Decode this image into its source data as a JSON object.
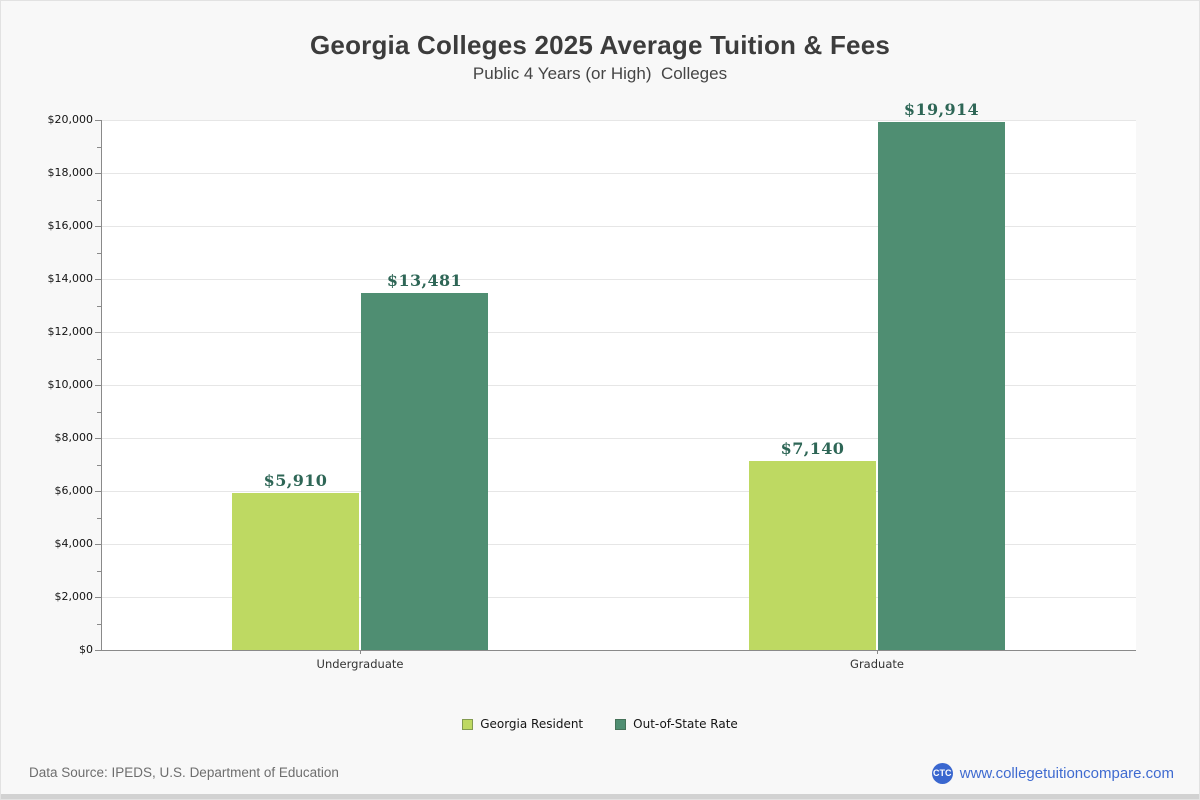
{
  "header": {
    "title": "Georgia Colleges 2025 Average Tuition & Fees",
    "subtitle": "Public 4 Years (or High)  Colleges"
  },
  "chart_data": {
    "type": "bar",
    "title": "Georgia Colleges 2025 Average Tuition & Fees",
    "subtitle": "Public 4 Years (or High)  Colleges",
    "categories": [
      "Undergraduate",
      "Graduate"
    ],
    "series": [
      {
        "name": "Georgia Resident",
        "color": "#bed962",
        "values": [
          5910,
          7140
        ],
        "labels": [
          "$5,910",
          "$7,140"
        ]
      },
      {
        "name": "Out-of-State Rate",
        "color": "#4f8e72",
        "values": [
          13481,
          19914
        ],
        "labels": [
          "$13,481",
          "$19,914"
        ]
      }
    ],
    "xlabel": "",
    "ylabel": "",
    "ylim": [
      0,
      20000
    ],
    "y_tick_step": 2000,
    "y_minor_tick_step": 1000,
    "y_tick_prefix": "$",
    "y_tick_labels": [
      "$0",
      "$2,000",
      "$4,000",
      "$6,000",
      "$8,000",
      "$10,000",
      "$12,000",
      "$14,000",
      "$16,000",
      "$18,000",
      "$20,000"
    ],
    "grid": true,
    "legend_position": "bottom",
    "value_label_color": "#2e6656",
    "plot_background": "#ffffff",
    "gridline_color": "#e6e6e6",
    "axis_color": "#8a8a8a"
  },
  "footer": {
    "source": "Data Source: IPEDS, U.S. Department of Education",
    "logo_text": "CTC",
    "site_label": "www.collegetuitioncompare.com",
    "link_color": "#3f6bd0",
    "logo_color": "#3a67cf"
  }
}
